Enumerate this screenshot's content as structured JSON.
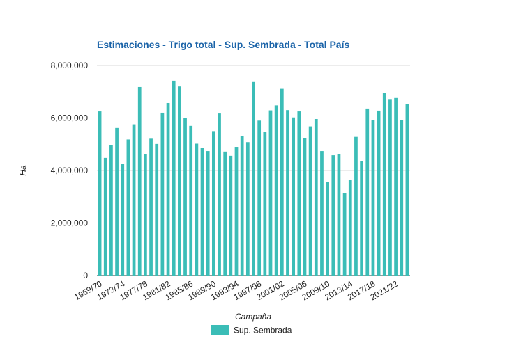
{
  "chart_data": {
    "type": "bar",
    "title": "Estimaciones - Trigo total - Sup. Sembrada - Total País",
    "xlabel": "Campaña",
    "ylabel": "Ha",
    "ylim": [
      0,
      8000000
    ],
    "yticks": [
      0,
      2000000,
      4000000,
      6000000,
      8000000
    ],
    "ytick_labels": [
      "0",
      "2,000,000",
      "4,000,000",
      "6,000,000",
      "8,000,000"
    ],
    "grid": true,
    "legend_position": "bottom",
    "color": "#3bbdb7",
    "categories": [
      "1969/70",
      "1970/71",
      "1971/72",
      "1972/73",
      "1973/74",
      "1974/75",
      "1975/76",
      "1976/77",
      "1977/78",
      "1978/79",
      "1979/80",
      "1980/81",
      "1981/82",
      "1982/83",
      "1983/84",
      "1984/85",
      "1985/86",
      "1986/87",
      "1987/88",
      "1988/89",
      "1989/90",
      "1990/91",
      "1991/92",
      "1992/93",
      "1993/94",
      "1994/95",
      "1995/96",
      "1996/97",
      "1997/98",
      "1998/99",
      "1999/00",
      "2000/01",
      "2001/02",
      "2002/03",
      "2003/04",
      "2004/05",
      "2005/06",
      "2006/07",
      "2007/08",
      "2008/09",
      "2009/10",
      "2010/11",
      "2011/12",
      "2012/13",
      "2013/14",
      "2014/15",
      "2015/16",
      "2016/17",
      "2017/18",
      "2018/19",
      "2019/20",
      "2020/21",
      "2021/22",
      "2022/23",
      "2023/24"
    ],
    "x_tick_labels": [
      "1969/70",
      "1973/74",
      "1977/78",
      "1981/82",
      "1985/86",
      "1989/90",
      "1993/94",
      "1997/98",
      "2001/02",
      "2005/06",
      "2009/10",
      "2013/14",
      "2017/18",
      "2021/22"
    ],
    "series": [
      {
        "name": "Sup. Sembrada",
        "values": [
          6250000,
          4480000,
          4980000,
          5620000,
          4250000,
          5180000,
          5760000,
          7180000,
          4610000,
          5210000,
          5010000,
          6200000,
          6570000,
          7420000,
          7200000,
          6000000,
          5700000,
          5020000,
          4850000,
          4740000,
          5500000,
          6170000,
          4720000,
          4560000,
          4900000,
          5310000,
          5080000,
          7370000,
          5900000,
          5460000,
          6290000,
          6480000,
          7110000,
          6300000,
          6020000,
          6250000,
          5220000,
          5680000,
          5960000,
          4740000,
          3550000,
          4580000,
          4630000,
          3150000,
          3650000,
          5280000,
          4360000,
          6360000,
          5920000,
          6280000,
          6950000,
          6720000,
          6760000,
          5910000,
          6540000
        ]
      }
    ]
  }
}
